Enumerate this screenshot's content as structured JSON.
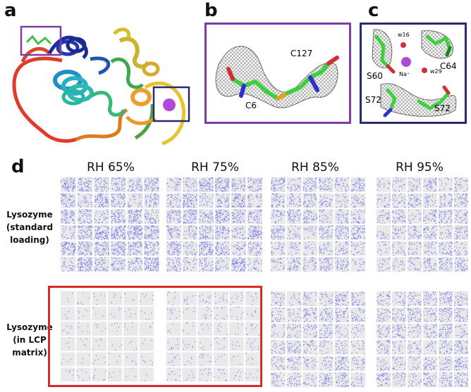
{
  "panels": {
    "a": {
      "letter": "a"
    },
    "b": {
      "letter": "b",
      "labels": [
        "C127",
        "C6"
      ],
      "frame_color": "#7b3fa3"
    },
    "c": {
      "letter": "c",
      "labels": [
        "w16",
        "C64",
        "S60",
        "Na⁺",
        "w29",
        "S72",
        "S72"
      ],
      "frame_color": "#2a2a6e"
    },
    "d": {
      "letter": "d",
      "columns": [
        "RH 65%",
        "RH 75%",
        "RH 85%",
        "RH 95%"
      ],
      "rows": [
        {
          "label": "Lysozyme (standard loading)",
          "lines": [
            "Lysozyme",
            "(standard",
            "loading)"
          ]
        },
        {
          "label": "Lysozyme (in LCP matrix)",
          "lines": [
            "Lysozyme",
            "(in LCP",
            "matrix)"
          ]
        }
      ],
      "grid": {
        "rows": 6,
        "cols": 6
      },
      "density": {
        "standard": [
          0.55,
          0.5,
          0.35,
          0.3
        ],
        "lcp": [
          0.04,
          0.07,
          0.3,
          0.3
        ]
      },
      "highlight_color": "#d62b2b",
      "spot_color": "#7b7bf0"
    }
  }
}
